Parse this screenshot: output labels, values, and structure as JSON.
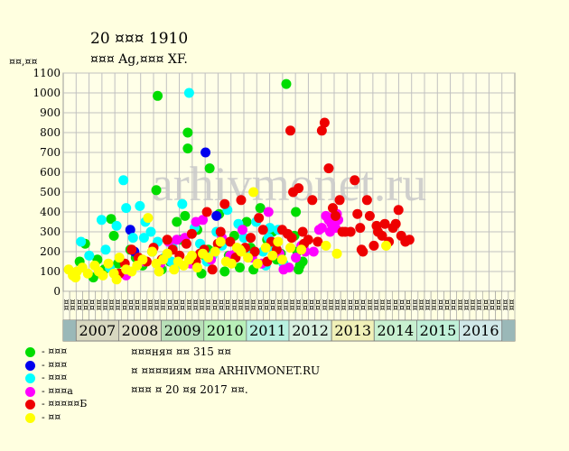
{
  "header": {
    "title": "20 ¤¤¤ 1910",
    "subtitle": "¤¤¤ Ag,¤¤¤ XF.",
    "y_unit": "¤¤,¤¤"
  },
  "watermark": "arhivmonet.ru",
  "notes": [
    "¤¤¤ня¤ ¤¤ 315 ¤¤",
    "¤ ¤¤¤¤иям ¤¤а ARHIVMONET.RU",
    "¤¤¤ ¤ 20 ¤я 2017 ¤¤."
  ],
  "legend": [
    {
      "label": "- ¤¤¤",
      "color": "#00dd00"
    },
    {
      "label": "- ¤¤¤",
      "color": "#0000ee"
    },
    {
      "label": "- ¤¤¤",
      "color": "#00ffff"
    },
    {
      "label": "- ¤¤¤а",
      "color": "#ff00ff"
    },
    {
      "label": "- ¤¤¤¤¤Б",
      "color": "#ee0000"
    },
    {
      "label": "- ¤¤",
      "color": "#ffff00"
    }
  ],
  "chart_data": {
    "type": "scatter",
    "ylim": [
      0,
      1100
    ],
    "yticks": [
      0,
      100,
      200,
      300,
      400,
      500,
      600,
      700,
      800,
      900,
      1000,
      1100
    ],
    "grid": true,
    "years": [
      "2007",
      "2008",
      "2009",
      "2010",
      "2011",
      "2012",
      "2013",
      "2014",
      "2015",
      "2016"
    ],
    "year_colors": [
      "#d8d8c0",
      "#e0e0c8",
      "#b8e0b8",
      "#b8f0b8",
      "#b8f0e0",
      "#d8f0e0",
      "#f0f0b8",
      "#c8f0d0",
      "#c0f0d8",
      "#d0e8e8"
    ],
    "slot_labels": [
      "¤¤",
      "¤¤",
      "¤¤",
      "¤¤",
      "¤¤",
      "¤¤",
      "¤¤",
      "¤¤",
      "¤¤",
      "¤¤",
      "¤¤",
      "¤¤",
      "¤¤",
      "¤¤",
      "¤¤",
      "¤¤",
      "¤¤",
      "¤¤",
      "¤¤",
      "¤¤",
      "¤¤",
      "¤¤",
      "¤¤",
      "¤¤",
      "¤¤",
      "¤¤",
      "¤¤",
      "¤¤",
      "¤¤",
      "¤¤",
      "¤¤",
      "¤¤",
      "¤¤",
      "¤¤",
      "¤¤",
      "¤¤",
      "¤¤",
      "¤¤",
      "¤¤",
      "¤¤",
      "¤¤",
      "¤¤",
      "¤¤",
      "¤¤",
      "¤¤",
      "¤¤",
      "¤¤",
      "¤¤",
      "¤¤",
      "¤¤",
      "¤¤",
      "¤¤",
      "¤¤",
      "¤¤",
      "¤¤",
      "¤¤",
      "¤¤",
      "¤¤",
      "¤¤",
      "¤¤",
      "¤¤",
      "¤¤",
      "¤¤",
      "¤¤",
      "¤¤",
      "¤¤",
      "¤¤",
      "¤¤",
      "¤¤",
      "¤¤"
    ],
    "xlim": [
      0,
      33
    ],
    "series": [
      {
        "name": "- ¤¤¤",
        "color": "#00dd00",
        "points": [
          [
            1.2,
            150
          ],
          [
            1.6,
            240
          ],
          [
            2.2,
            70
          ],
          [
            2.5,
            160
          ],
          [
            3.0,
            110
          ],
          [
            3.5,
            365
          ],
          [
            4.0,
            140
          ],
          [
            3.7,
            280
          ],
          [
            4.9,
            210
          ],
          [
            5.3,
            170
          ],
          [
            5.8,
            130
          ],
          [
            6.5,
            200
          ],
          [
            6.9,
            985
          ],
          [
            7.2,
            110
          ],
          [
            7.8,
            150
          ],
          [
            8.3,
            350
          ],
          [
            8.6,
            260
          ],
          [
            8.9,
            380
          ],
          [
            9.1,
            800
          ],
          [
            9.1,
            720
          ],
          [
            9.5,
            140
          ],
          [
            9.8,
            310
          ],
          [
            10.1,
            90
          ],
          [
            10.4,
            175
          ],
          [
            10.6,
            210
          ],
          [
            10.7,
            620
          ],
          [
            11.0,
            200
          ],
          [
            11.4,
            390
          ],
          [
            11.8,
            100
          ],
          [
            12.1,
            180
          ],
          [
            12.5,
            280
          ],
          [
            12.9,
            120
          ],
          [
            13.4,
            350
          ],
          [
            13.7,
            220
          ],
          [
            13.9,
            110
          ],
          [
            14.4,
            420
          ],
          [
            14.9,
            260
          ],
          [
            15.3,
            300
          ],
          [
            15.6,
            160
          ],
          [
            16.3,
            1045
          ],
          [
            16.9,
            280
          ],
          [
            17.1,
            200
          ],
          [
            17.2,
            110
          ],
          [
            17.3,
            130
          ],
          [
            17.5,
            150
          ],
          [
            6.8,
            510
          ],
          [
            17.0,
            400
          ],
          [
            15.9,
            190
          ]
        ]
      },
      {
        "name": "- ¤¤¤",
        "color": "#0000ee",
        "points": [
          [
            4.9,
            310
          ],
          [
            5.2,
            200
          ],
          [
            10.4,
            700
          ],
          [
            11.2,
            380
          ]
        ]
      },
      {
        "name": "- ¤¤¤",
        "color": "#00ffff",
        "points": [
          [
            1.3,
            250
          ],
          [
            1.9,
            180
          ],
          [
            2.8,
            360
          ],
          [
            3.4,
            120
          ],
          [
            3.9,
            330
          ],
          [
            4.4,
            560
          ],
          [
            4.6,
            420
          ],
          [
            5.1,
            270
          ],
          [
            5.6,
            430
          ],
          [
            6.0,
            350
          ],
          [
            6.4,
            300
          ],
          [
            6.9,
            250
          ],
          [
            7.4,
            170
          ],
          [
            8.0,
            220
          ],
          [
            8.4,
            140
          ],
          [
            8.7,
            440
          ],
          [
            9.2,
            1000
          ],
          [
            9.6,
            320
          ],
          [
            10.0,
            240
          ],
          [
            10.5,
            150
          ],
          [
            11.2,
            300
          ],
          [
            11.6,
            230
          ],
          [
            12.0,
            410
          ],
          [
            12.4,
            160
          ],
          [
            12.8,
            340
          ],
          [
            13.2,
            270
          ],
          [
            13.6,
            180
          ],
          [
            14.1,
            350
          ],
          [
            14.6,
            200
          ],
          [
            15.0,
            270
          ],
          [
            15.4,
            210
          ],
          [
            15.7,
            310
          ],
          [
            16.1,
            140
          ],
          [
            3.1,
            210
          ],
          [
            5.9,
            270
          ],
          [
            7.9,
            150
          ],
          [
            10.9,
            180
          ],
          [
            14.8,
            130
          ],
          [
            15.1,
            320
          ]
        ]
      },
      {
        "name": "- ¤¤¤а",
        "color": "#ff00ff",
        "points": [
          [
            4.6,
            80
          ],
          [
            5.9,
            150
          ],
          [
            7.1,
            140
          ],
          [
            7.7,
            250
          ],
          [
            8.3,
            260
          ],
          [
            8.9,
            270
          ],
          [
            9.3,
            140
          ],
          [
            9.7,
            350
          ],
          [
            10.2,
            360
          ],
          [
            10.8,
            160
          ],
          [
            11.6,
            270
          ],
          [
            12.2,
            180
          ],
          [
            12.6,
            190
          ],
          [
            13.1,
            310
          ],
          [
            13.8,
            170
          ],
          [
            14.5,
            140
          ],
          [
            15.0,
            400
          ],
          [
            15.8,
            190
          ],
          [
            16.1,
            110
          ],
          [
            17.0,
            170
          ],
          [
            17.4,
            230
          ],
          [
            17.7,
            200
          ],
          [
            18.3,
            200
          ],
          [
            18.9,
            320
          ],
          [
            19.2,
            380
          ],
          [
            19.4,
            360
          ],
          [
            19.6,
            340
          ],
          [
            19.8,
            380
          ],
          [
            20.0,
            390
          ],
          [
            20.1,
            360
          ],
          [
            19.5,
            300
          ],
          [
            19.9,
            320
          ],
          [
            18.7,
            310
          ],
          [
            16.5,
            120
          ]
        ]
      },
      {
        "name": "- ¤¤¤¤¤Б",
        "color": "#ee0000",
        "points": [
          [
            4.1,
            90
          ],
          [
            4.5,
            140
          ],
          [
            5.0,
            210
          ],
          [
            5.5,
            170
          ],
          [
            6.1,
            150
          ],
          [
            6.6,
            220
          ],
          [
            7.2,
            160
          ],
          [
            7.6,
            260
          ],
          [
            8.0,
            210
          ],
          [
            8.5,
            180
          ],
          [
            9.0,
            240
          ],
          [
            9.4,
            290
          ],
          [
            9.7,
            150
          ],
          [
            10.0,
            190
          ],
          [
            10.3,
            210
          ],
          [
            10.5,
            400
          ],
          [
            10.9,
            110
          ],
          [
            11.3,
            240
          ],
          [
            11.5,
            300
          ],
          [
            11.8,
            440
          ],
          [
            12.2,
            250
          ],
          [
            12.6,
            170
          ],
          [
            13.0,
            460
          ],
          [
            13.3,
            220
          ],
          [
            13.7,
            270
          ],
          [
            14.0,
            200
          ],
          [
            14.3,
            370
          ],
          [
            14.6,
            310
          ],
          [
            14.9,
            150
          ],
          [
            15.2,
            250
          ],
          [
            15.6,
            210
          ],
          [
            16.0,
            310
          ],
          [
            16.4,
            290
          ],
          [
            16.6,
            810
          ],
          [
            16.8,
            500
          ],
          [
            17.2,
            520
          ],
          [
            17.5,
            300
          ],
          [
            17.9,
            260
          ],
          [
            18.2,
            460
          ],
          [
            18.6,
            250
          ],
          [
            18.9,
            810
          ],
          [
            19.1,
            850
          ],
          [
            19.4,
            620
          ],
          [
            19.7,
            420
          ],
          [
            19.9,
            380
          ],
          [
            20.2,
            460
          ],
          [
            20.6,
            300
          ],
          [
            21.0,
            300
          ],
          [
            21.3,
            560
          ],
          [
            21.5,
            390
          ],
          [
            21.7,
            320
          ],
          [
            21.9,
            200
          ],
          [
            22.2,
            460
          ],
          [
            22.4,
            380
          ],
          [
            22.7,
            230
          ],
          [
            23.0,
            300
          ],
          [
            23.3,
            280
          ],
          [
            23.5,
            340
          ],
          [
            23.8,
            250
          ],
          [
            24.1,
            320
          ],
          [
            24.3,
            340
          ],
          [
            24.5,
            410
          ],
          [
            24.7,
            280
          ],
          [
            25.0,
            250
          ],
          [
            25.3,
            260
          ],
          [
            17.6,
            240
          ],
          [
            20.4,
            300
          ],
          [
            22.9,
            330
          ],
          [
            16.7,
            270
          ],
          [
            21.8,
            210
          ]
        ]
      },
      {
        "name": "- ¤¤",
        "color": "#ffff00",
        "points": [
          [
            0.4,
            110
          ],
          [
            0.7,
            80
          ],
          [
            1.0,
            100
          ],
          [
            1.4,
            120
          ],
          [
            1.8,
            90
          ],
          [
            2.3,
            130
          ],
          [
            2.6,
            100
          ],
          [
            2.9,
            80
          ],
          [
            3.3,
            140
          ],
          [
            3.7,
            90
          ],
          [
            4.1,
            170
          ],
          [
            4.6,
            110
          ],
          [
            5.0,
            100
          ],
          [
            5.4,
            130
          ],
          [
            5.8,
            160
          ],
          [
            6.2,
            370
          ],
          [
            6.5,
            200
          ],
          [
            6.8,
            140
          ],
          [
            7.3,
            160
          ],
          [
            7.6,
            190
          ],
          [
            8.1,
            110
          ],
          [
            8.4,
            150
          ],
          [
            8.8,
            130
          ],
          [
            9.2,
            160
          ],
          [
            9.4,
            180
          ],
          [
            9.8,
            120
          ],
          [
            10.2,
            190
          ],
          [
            10.6,
            170
          ],
          [
            11.1,
            200
          ],
          [
            11.5,
            250
          ],
          [
            11.9,
            150
          ],
          [
            12.3,
            140
          ],
          [
            12.7,
            220
          ],
          [
            13.0,
            200
          ],
          [
            13.5,
            170
          ],
          [
            13.9,
            500
          ],
          [
            14.2,
            140
          ],
          [
            14.8,
            220
          ],
          [
            15.3,
            180
          ],
          [
            15.7,
            250
          ],
          [
            16.0,
            160
          ],
          [
            16.6,
            220
          ],
          [
            17.4,
            210
          ],
          [
            19.2,
            230
          ],
          [
            20.0,
            190
          ],
          [
            23.6,
            230
          ],
          [
            0.9,
            70
          ],
          [
            3.9,
            60
          ],
          [
            7.0,
            100
          ],
          [
            12.9,
            210
          ]
        ]
      }
    ]
  }
}
